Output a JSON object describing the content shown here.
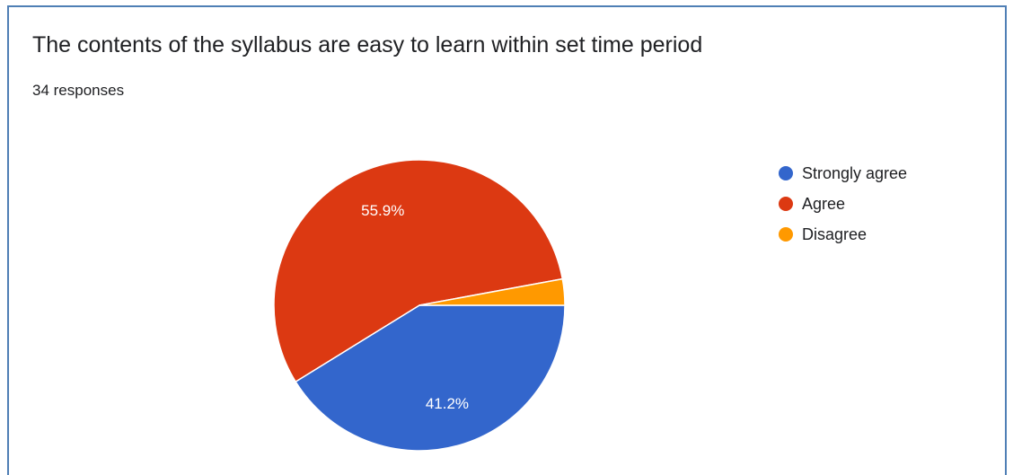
{
  "chart_data": {
    "type": "pie",
    "title": "The contents of the syllabus are easy to learn within set time period",
    "subtitle": "34 responses",
    "slices": [
      {
        "label": "Strongly agree",
        "value": 41.2,
        "color": "#3366cc",
        "data_label": "41.2%"
      },
      {
        "label": "Agree",
        "value": 55.9,
        "color": "#dc3912",
        "data_label": "55.9%"
      },
      {
        "label": "Disagree",
        "value": 2.9,
        "color": "#ff9900",
        "data_label": ""
      }
    ],
    "legend_position": "right"
  }
}
